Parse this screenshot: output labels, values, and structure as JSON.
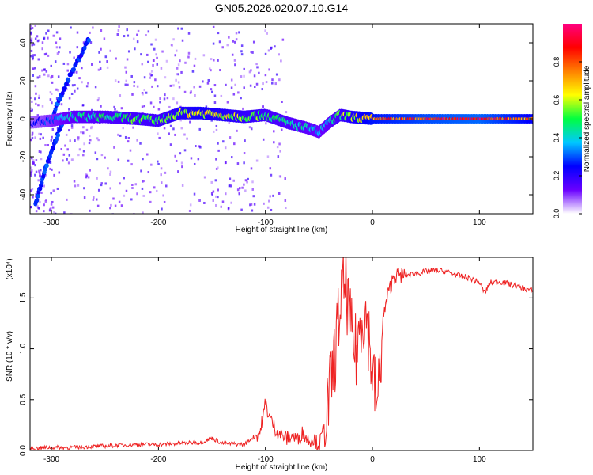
{
  "title": "GN05.2026.020.07.10.G14",
  "chart_data": [
    {
      "type": "heatmap",
      "xlabel": "Height of straight line (km)",
      "ylabel": "Frequency (Hz)",
      "xlim": [
        -320,
        150
      ],
      "ylim": [
        -50,
        50
      ],
      "xticks": [
        -300,
        -200,
        -100,
        0,
        100
      ],
      "yticks": [
        -40,
        -20,
        0,
        20,
        40
      ],
      "colorbar": {
        "label": "Normalized spectral amplitude",
        "range": [
          0.0,
          1.0
        ],
        "ticks": [
          "0.0",
          "0.2",
          "0.4",
          "0.6",
          "0.8"
        ],
        "tick_values": [
          0.0,
          0.2,
          0.4,
          0.6,
          0.8
        ],
        "colormap": [
          "#ffffff",
          "#6a00ff",
          "#0000ff",
          "#00c8ff",
          "#00ff40",
          "#ffff00",
          "#ff8000",
          "#ff0000",
          "#ff0080"
        ]
      },
      "ridge": {
        "height_km": [
          -320,
          -300,
          -280,
          -250,
          -220,
          -200,
          -180,
          -160,
          -140,
          -120,
          -100,
          -80,
          -60,
          -50,
          -40,
          -30,
          -20,
          0,
          50,
          100,
          150
        ],
        "frequency_hz": [
          -2,
          -1,
          1,
          1,
          0,
          -1,
          3,
          3,
          2,
          1,
          2,
          -2,
          -5,
          -7,
          -2,
          2,
          1,
          0,
          0,
          0,
          0
        ],
        "amplitude": [
          0.2,
          0.3,
          0.4,
          0.45,
          0.5,
          0.5,
          0.6,
          0.65,
          0.6,
          0.55,
          0.5,
          0.45,
          0.4,
          0.35,
          0.4,
          0.5,
          0.6,
          0.75,
          0.85,
          0.9,
          0.7
        ]
      },
      "branch_up": {
        "height_km": [
          -300,
          -285,
          -265
        ],
        "frequency_hz": [
          0,
          20,
          42
        ]
      },
      "branch_down": {
        "height_km": [
          -315,
          -305,
          -290
        ],
        "frequency_hz": [
          -45,
          -25,
          -2
        ]
      }
    },
    {
      "type": "line",
      "xlabel": "Height of straight line (km)",
      "ylabel": "SNR (10 * v/v)",
      "y_multiplier": "(x10⁴)",
      "xlim": [
        -320,
        150
      ],
      "ylim": [
        0,
        1.9
      ],
      "xticks": [
        -300,
        -200,
        -100,
        0,
        100
      ],
      "yticks": [
        0.0,
        0.5,
        1.0,
        1.5
      ],
      "color": "#ee2222",
      "series": [
        {
          "x": [
            -320,
            -300,
            -280,
            -260,
            -240,
            -220,
            -200,
            -180,
            -160,
            -150,
            -140,
            -120,
            -105,
            -100,
            -95,
            -90,
            -85,
            -80,
            -75,
            -70,
            -65,
            -60,
            -55,
            -50,
            -45,
            -40,
            -35,
            -30,
            -25,
            -20,
            -15,
            -10,
            -5,
            0,
            5,
            10,
            15,
            20,
            30,
            40,
            50,
            60,
            70,
            80,
            90,
            100,
            105,
            110,
            120,
            130,
            140,
            150
          ],
          "y": [
            0.02,
            0.03,
            0.03,
            0.04,
            0.05,
            0.06,
            0.06,
            0.07,
            0.08,
            0.12,
            0.07,
            0.06,
            0.18,
            0.45,
            0.3,
            0.2,
            0.15,
            0.12,
            0.15,
            0.1,
            0.18,
            0.1,
            0.12,
            0.05,
            0.22,
            0.55,
            0.95,
            1.45,
            1.65,
            1.15,
            0.95,
            1.35,
            1.3,
            0.75,
            0.45,
            1.3,
            1.55,
            1.72,
            1.72,
            1.74,
            1.76,
            1.77,
            1.76,
            1.72,
            1.7,
            1.65,
            1.55,
            1.65,
            1.66,
            1.63,
            1.6,
            1.57
          ]
        }
      ]
    }
  ]
}
